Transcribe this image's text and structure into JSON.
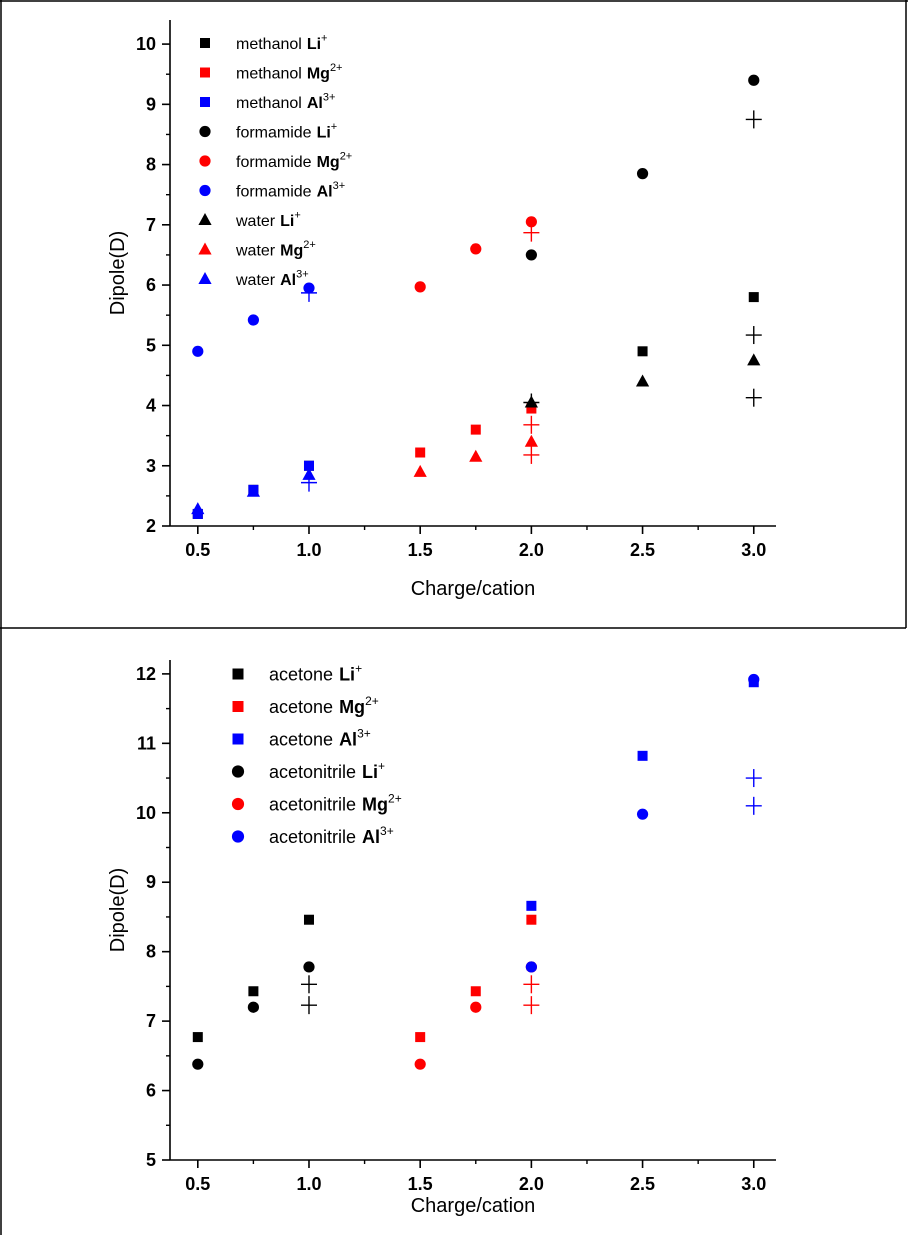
{
  "chart_data": [
    {
      "type": "scatter",
      "xlabel": "Charge/cation",
      "ylabel": "Dipole(D)",
      "xlim": [
        0.375,
        3.1
      ],
      "ylim": [
        2,
        10.4
      ],
      "xticks": [
        0.5,
        1.0,
        1.5,
        2.0,
        2.5,
        3.0
      ],
      "xtick_labels": [
        "0.5",
        "1.0",
        "1.5",
        "2.0",
        "2.5",
        "3.0"
      ],
      "yticks": [
        2,
        3,
        4,
        5,
        6,
        7,
        8,
        9,
        10
      ],
      "ytick_labels": [
        "2",
        "3",
        "4",
        "5",
        "6",
        "7",
        "8",
        "9",
        "10"
      ],
      "grid": false,
      "legend_position": "top-left",
      "series": [
        {
          "solvent": "methanol",
          "ion": "Li",
          "charge": "+",
          "marker": "square",
          "color": "#000000",
          "points": [
            [
              0.5,
              2.2
            ],
            [
              0.75,
              2.6
            ],
            [
              1.0,
              3.0
            ],
            [
              2.5,
              4.9
            ],
            [
              3.0,
              5.8
            ]
          ]
        },
        {
          "solvent": "methanol",
          "ion": "Mg",
          "charge": "2+",
          "marker": "square",
          "color": "#ff0000",
          "points": [
            [
              1.5,
              3.22
            ],
            [
              1.75,
              3.6
            ],
            [
              2.0,
              3.95
            ]
          ]
        },
        {
          "solvent": "methanol",
          "ion": "Al",
          "charge": "3+",
          "marker": "square",
          "color": "#0000ff",
          "points": [
            [
              0.5,
              2.2
            ],
            [
              0.75,
              2.6
            ],
            [
              1.0,
              3.0
            ]
          ]
        },
        {
          "solvent": "formamide",
          "ion": "Li",
          "charge": "+",
          "marker": "circle",
          "color": "#000000",
          "points": [
            [
              2.0,
              6.5
            ],
            [
              2.5,
              7.85
            ],
            [
              3.0,
              9.4
            ]
          ]
        },
        {
          "solvent": "formamide",
          "ion": "Mg",
          "charge": "2+",
          "marker": "circle",
          "color": "#ff0000",
          "points": [
            [
              1.5,
              5.97
            ],
            [
              1.75,
              6.6
            ],
            [
              2.0,
              7.05
            ]
          ]
        },
        {
          "solvent": "formamide",
          "ion": "Al",
          "charge": "3+",
          "marker": "circle",
          "color": "#0000ff",
          "points": [
            [
              0.5,
              4.9
            ],
            [
              0.75,
              5.42
            ],
            [
              1.0,
              5.95
            ]
          ]
        },
        {
          "solvent": "water",
          "ion": "Li",
          "charge": "+",
          "marker": "triangle",
          "color": "#000000",
          "points": [
            [
              2.0,
              4.05
            ],
            [
              2.5,
              4.4
            ],
            [
              3.0,
              4.75
            ]
          ]
        },
        {
          "solvent": "water",
          "ion": "Mg",
          "charge": "2+",
          "marker": "triangle",
          "color": "#ff0000",
          "points": [
            [
              1.5,
              2.9
            ],
            [
              1.75,
              3.15
            ],
            [
              2.0,
              3.4
            ]
          ]
        },
        {
          "solvent": "water",
          "ion": "Al",
          "charge": "3+",
          "marker": "triangle",
          "color": "#0000ff",
          "points": [
            [
              0.5,
              2.28
            ],
            [
              0.75,
              2.57
            ],
            [
              1.0,
              2.85
            ]
          ]
        }
      ],
      "unlabeled_markers": [
        {
          "marker": "plus",
          "color": "#000000",
          "points": [
            [
              3.0,
              8.75
            ],
            [
              3.0,
              5.17
            ],
            [
              3.0,
              4.13
            ],
            [
              2.0,
              4.05
            ]
          ]
        },
        {
          "marker": "plus",
          "color": "#ff0000",
          "points": [
            [
              2.0,
              6.87
            ],
            [
              2.0,
              3.68
            ],
            [
              2.0,
              3.18
            ]
          ]
        },
        {
          "marker": "plus",
          "color": "#0000ff",
          "points": [
            [
              1.0,
              5.87
            ],
            [
              1.0,
              2.72
            ]
          ]
        }
      ]
    },
    {
      "type": "scatter",
      "xlabel": "Charge/cation",
      "ylabel": "Dipole(D)",
      "xlim": [
        0.375,
        3.1
      ],
      "ylim": [
        5,
        12.2
      ],
      "xticks": [
        0.5,
        1.0,
        1.5,
        2.0,
        2.5,
        3.0
      ],
      "xtick_labels": [
        "0.5",
        "1.0",
        "1.5",
        "2.0",
        "2.5",
        "3.0"
      ],
      "yticks": [
        5,
        6,
        7,
        8,
        9,
        10,
        11,
        12
      ],
      "ytick_labels": [
        "5",
        "6",
        "7",
        "8",
        "9",
        "10",
        "11",
        "12"
      ],
      "grid": false,
      "legend_position": "top-left",
      "series": [
        {
          "solvent": "acetone",
          "ion": "Li",
          "charge": "+",
          "marker": "square",
          "color": "#000000",
          "points": [
            [
              0.5,
              6.77
            ],
            [
              0.75,
              7.43
            ],
            [
              1.0,
              8.46
            ]
          ]
        },
        {
          "solvent": "acetone",
          "ion": "Mg",
          "charge": "2+",
          "marker": "square",
          "color": "#ff0000",
          "points": [
            [
              1.5,
              6.77
            ],
            [
              1.75,
              7.43
            ],
            [
              2.0,
              8.46
            ]
          ]
        },
        {
          "solvent": "acetone",
          "ion": "Al",
          "charge": "3+",
          "marker": "square",
          "color": "#0000ff",
          "points": [
            [
              2.0,
              8.66
            ],
            [
              2.5,
              10.82
            ],
            [
              3.0,
              11.88
            ]
          ]
        },
        {
          "solvent": "acetonitrile",
          "ion": "Li",
          "charge": "+",
          "marker": "circle",
          "color": "#000000",
          "points": [
            [
              0.5,
              6.38
            ],
            [
              0.75,
              7.2
            ],
            [
              1.0,
              7.78
            ]
          ]
        },
        {
          "solvent": "acetonitrile",
          "ion": "Mg",
          "charge": "2+",
          "marker": "circle",
          "color": "#ff0000",
          "points": [
            [
              1.5,
              6.38
            ],
            [
              1.75,
              7.2
            ],
            [
              2.0,
              7.78
            ]
          ]
        },
        {
          "solvent": "acetonitrile",
          "ion": "Al",
          "charge": "3+",
          "marker": "circle",
          "color": "#0000ff",
          "points": [
            [
              2.0,
              7.78
            ],
            [
              2.5,
              9.98
            ],
            [
              3.0,
              11.92
            ]
          ]
        }
      ],
      "unlabeled_markers": [
        {
          "marker": "plus",
          "color": "#000000",
          "points": [
            [
              1.0,
              7.53
            ],
            [
              1.0,
              7.23
            ]
          ]
        },
        {
          "marker": "plus",
          "color": "#ff0000",
          "points": [
            [
              2.0,
              7.53
            ],
            [
              2.0,
              7.23
            ]
          ]
        },
        {
          "marker": "plus",
          "color": "#0000ff",
          "points": [
            [
              3.0,
              10.5
            ],
            [
              3.0,
              10.1
            ]
          ]
        }
      ]
    }
  ]
}
